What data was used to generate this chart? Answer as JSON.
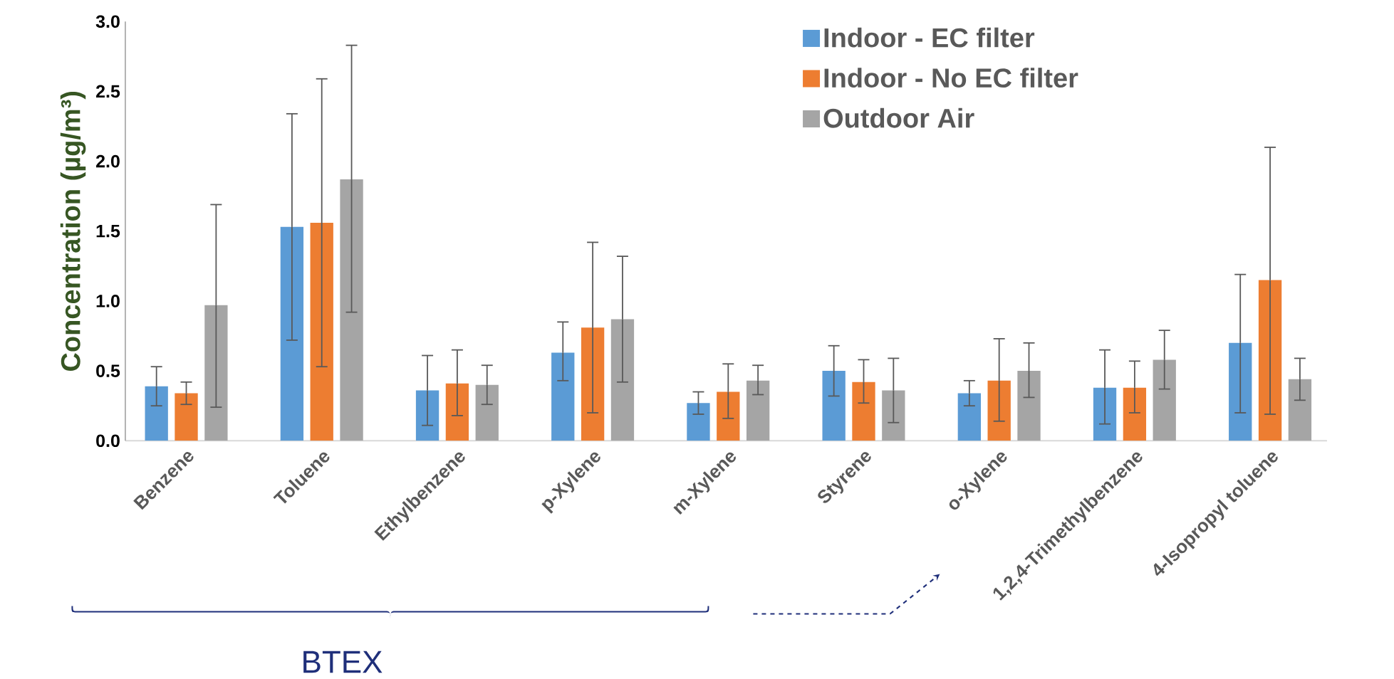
{
  "chart_data": {
    "type": "bar",
    "ylabel": "Concentration (µg/m³)",
    "categories": [
      "Benzene",
      "Toluene",
      "Ethylbenzene",
      "p-Xylene",
      "m-Xylene",
      "Styrene",
      "o-Xylene",
      "1,2,4-Trimethylbenzene",
      "4-Isopropyl toluene"
    ],
    "series": [
      {
        "name": "Indoor -  EC filter",
        "color": "#5b9bd5",
        "values": [
          0.39,
          1.53,
          0.36,
          0.63,
          0.27,
          0.5,
          0.34,
          0.38,
          0.7
        ],
        "errors": [
          [
            0.25,
            0.53
          ],
          [
            0.72,
            2.34
          ],
          [
            0.11,
            0.61
          ],
          [
            0.43,
            0.85
          ],
          [
            0.19,
            0.35
          ],
          [
            0.32,
            0.68
          ],
          [
            0.25,
            0.43
          ],
          [
            0.12,
            0.65
          ],
          [
            0.2,
            1.19
          ]
        ]
      },
      {
        "name": "Indoor -  No EC filter",
        "color": "#ed7d31",
        "values": [
          0.34,
          1.56,
          0.41,
          0.81,
          0.35,
          0.42,
          0.43,
          0.38,
          1.15
        ],
        "errors": [
          [
            0.26,
            0.42
          ],
          [
            0.53,
            2.59
          ],
          [
            0.18,
            0.65
          ],
          [
            0.2,
            1.42
          ],
          [
            0.16,
            0.55
          ],
          [
            0.27,
            0.58
          ],
          [
            0.14,
            0.73
          ],
          [
            0.2,
            0.57
          ],
          [
            0.19,
            2.1
          ]
        ]
      },
      {
        "name": "Outdoor Air",
        "color": "#a5a5a5",
        "values": [
          0.97,
          1.87,
          0.4,
          0.87,
          0.43,
          0.36,
          0.5,
          0.58,
          0.44
        ],
        "errors": [
          [
            0.24,
            1.69
          ],
          [
            0.92,
            2.83
          ],
          [
            0.26,
            0.54
          ],
          [
            0.42,
            1.32
          ],
          [
            0.33,
            0.54
          ],
          [
            0.13,
            0.59
          ],
          [
            0.31,
            0.7
          ],
          [
            0.37,
            0.79
          ],
          [
            0.29,
            0.59
          ]
        ]
      }
    ],
    "ylim": [
      0,
      3
    ],
    "yticks": [
      {
        "value": 0,
        "label": "0.0"
      },
      {
        "value": 0.5,
        "label": "0.5"
      },
      {
        "value": 1,
        "label": "1.0"
      },
      {
        "value": 1.5,
        "label": "1.5"
      },
      {
        "value": 2,
        "label": "2.0"
      },
      {
        "value": 2.5,
        "label": "2.5"
      },
      {
        "value": 3,
        "label": "3.0"
      }
    ],
    "legend": "top right",
    "grid": false,
    "annotations": [
      "BTEX"
    ]
  }
}
